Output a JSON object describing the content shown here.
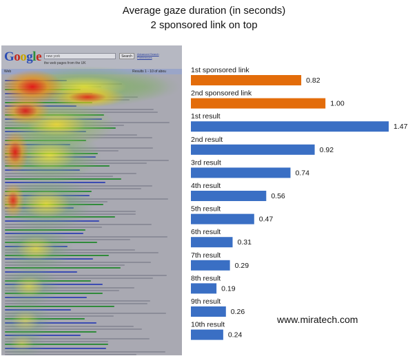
{
  "title_line1": "Average gaze duration (in seconds)",
  "title_line2": "2 sponsored link on top",
  "watermark": "www.miratech.com",
  "heatmap": {
    "logo": "Google",
    "search_value": "new york",
    "search_button": "Search",
    "advanced_link": "Advanced Search",
    "preferences_link": "Preferences",
    "radio_text": "the web   pages from the UK",
    "bar_left": "Web",
    "bar_right": "Results 1 - 10 of abou"
  },
  "colors": {
    "sponsored": "#e36c0a",
    "organic": "#3a6fc4"
  },
  "chart_data": {
    "type": "bar",
    "orientation": "horizontal",
    "title": "Average gaze duration (in seconds)",
    "subtitle": "2 sponsored link on top",
    "categories": [
      "1st sponsored link",
      "2nd sponsored link",
      "1st result",
      "2nd result",
      "3rd result",
      "4th result",
      "5th result",
      "6th result",
      "7th result",
      "8th result",
      "9th result",
      "10th result"
    ],
    "values": [
      0.82,
      1.0,
      1.47,
      0.92,
      0.74,
      0.56,
      0.47,
      0.31,
      0.29,
      0.19,
      0.26,
      0.24
    ],
    "value_labels": [
      "0.82",
      "1.00",
      "1.47",
      "0.92",
      "0.74",
      "0.56",
      "0.47",
      "0.31",
      "0.29",
      "0.19",
      "0.26",
      "0.24"
    ],
    "bar_groups": [
      "sponsored",
      "sponsored",
      "organic",
      "organic",
      "organic",
      "organic",
      "organic",
      "organic",
      "organic",
      "organic",
      "organic",
      "organic"
    ],
    "xlim": [
      0,
      1.47
    ],
    "grid": false,
    "legend": "none"
  }
}
